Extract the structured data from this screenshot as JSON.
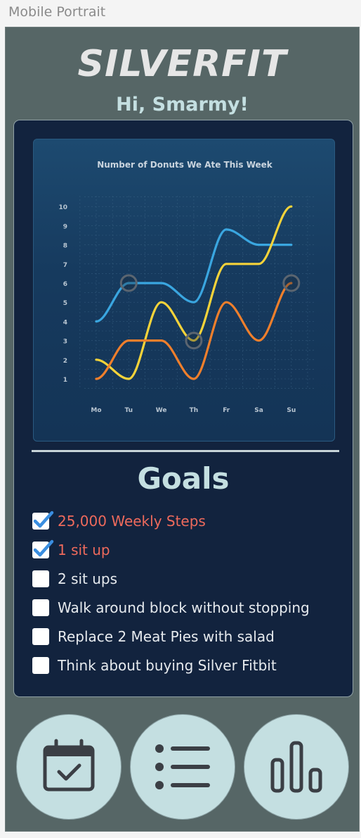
{
  "window_label": "Mobile Portrait",
  "app": {
    "brand": "SILVERFIT",
    "greeting": "Hi, Smarmy!"
  },
  "chart_data": {
    "type": "line",
    "title": "Number of Donuts We Ate This Week",
    "categories": [
      "Mo",
      "Tu",
      "We",
      "Th",
      "Fr",
      "Sa",
      "Su"
    ],
    "ylim": [
      0,
      10.5
    ],
    "yticks": [
      1,
      2,
      3,
      4,
      5,
      6,
      7,
      8,
      9,
      10
    ],
    "grid": true,
    "series": [
      {
        "color": "#3aa6e0",
        "values": [
          4,
          6,
          6,
          5,
          8.8,
          8,
          8
        ]
      },
      {
        "color": "#f5d33a",
        "values": [
          2,
          1,
          5,
          3,
          7,
          7,
          10
        ]
      },
      {
        "color": "#ef7f2c",
        "values": [
          1,
          3,
          3,
          1,
          5,
          3,
          6
        ]
      }
    ],
    "highlights": [
      {
        "category": "Tu",
        "value": 6
      },
      {
        "category": "Th",
        "value": 3
      },
      {
        "category": "Su",
        "value": 6
      }
    ]
  },
  "goals": {
    "title": "Goals",
    "items": [
      {
        "label": "25,000 Weekly Steps",
        "checked": true
      },
      {
        "label": " 1 sit up",
        "checked": true
      },
      {
        "label": "2 sit ups",
        "checked": false
      },
      {
        "label": "Walk around block without stopping",
        "checked": false
      },
      {
        "label": "Replace 2 Meat Pies with salad",
        "checked": false
      },
      {
        "label": "Think about buying Silver Fitbit",
        "checked": false
      }
    ]
  },
  "nav": [
    {
      "icon": "calendar-check-icon"
    },
    {
      "icon": "list-icon"
    },
    {
      "icon": "bar-chart-icon"
    }
  ],
  "colors": {
    "background": "#566666",
    "card": "#12233e",
    "accent": "#c4dfe1",
    "checked_text": "#ee6a5c",
    "check": "#3a8ee0"
  }
}
